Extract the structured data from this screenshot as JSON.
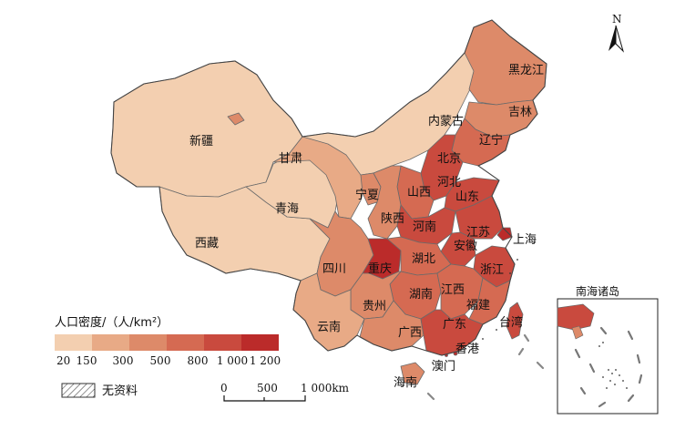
{
  "colors": {
    "class1": "#f3cfb0",
    "class2": "#e8aa86",
    "class3": "#dd8a69",
    "class4": "#d56a52",
    "class5": "#c94a3e",
    "class6": "#bb2b2a",
    "border": "#555555",
    "background": "#ffffff"
  },
  "legend": {
    "title": "人口密度/（人/km²）",
    "breaks": [
      "20",
      "150",
      "300",
      "500",
      "800",
      "1 000",
      "1 200"
    ],
    "no_data_label": "无资料"
  },
  "scale_bar": {
    "labels": [
      "0",
      "500",
      "1 000km"
    ]
  },
  "north_arrow": {
    "label": "N"
  },
  "inset": {
    "title": "南海诸岛"
  },
  "region_labels": [
    "新疆",
    "西藏",
    "青海",
    "甘肃",
    "内蒙古",
    "黑龙江",
    "吉林",
    "辽宁",
    "北京",
    "河北",
    "山西",
    "山东",
    "宁夏",
    "陕西",
    "河南",
    "江苏",
    "安徽",
    "上海",
    "四川",
    "重庆",
    "湖北",
    "浙江",
    "湖南",
    "江西",
    "贵州",
    "福建",
    "台湾",
    "云南",
    "广西",
    "广东",
    "香港",
    "澳门",
    "海南"
  ]
}
